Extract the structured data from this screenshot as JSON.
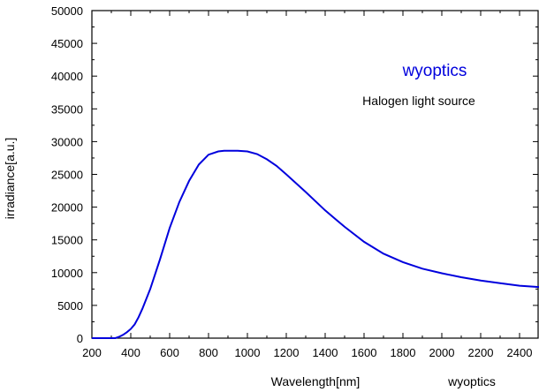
{
  "chart_data": {
    "type": "line",
    "xlabel": "Wavelength[nm]",
    "ylabel": "irradiance[a.u.]",
    "xlim": [
      200,
      2500
    ],
    "ylim": [
      0,
      50000
    ],
    "x_ticks": [
      200,
      400,
      600,
      800,
      1000,
      1200,
      1400,
      1600,
      1800,
      2000,
      2200,
      2400
    ],
    "y_ticks": [
      0,
      5000,
      10000,
      15000,
      20000,
      25000,
      30000,
      35000,
      40000,
      45000,
      50000
    ],
    "grid": false,
    "series": [
      {
        "color": "#0000dd",
        "x": [
          200,
          320,
          340,
          360,
          380,
          400,
          420,
          440,
          460,
          500,
          550,
          600,
          650,
          700,
          750,
          800,
          850,
          880,
          900,
          950,
          1000,
          1050,
          1100,
          1150,
          1200,
          1300,
          1400,
          1500,
          1600,
          1700,
          1800,
          1900,
          2000,
          2100,
          2200,
          2300,
          2400,
          2500
        ],
        "values": [
          0,
          0,
          200,
          500,
          900,
          1400,
          2100,
          3200,
          4500,
          7500,
          12000,
          16800,
          20800,
          24000,
          26500,
          28000,
          28500,
          28600,
          28600,
          28600,
          28500,
          28100,
          27300,
          26300,
          25000,
          22300,
          19500,
          17000,
          14700,
          12900,
          11600,
          10600,
          9900,
          9300,
          8800,
          8400,
          8000,
          7800
        ]
      }
    ],
    "annotations": [
      {
        "text": "wyoptics",
        "color": "#0000dd"
      },
      {
        "text": "Halogen light source",
        "color": "#000000"
      }
    ],
    "footer_text": "wyoptics"
  }
}
